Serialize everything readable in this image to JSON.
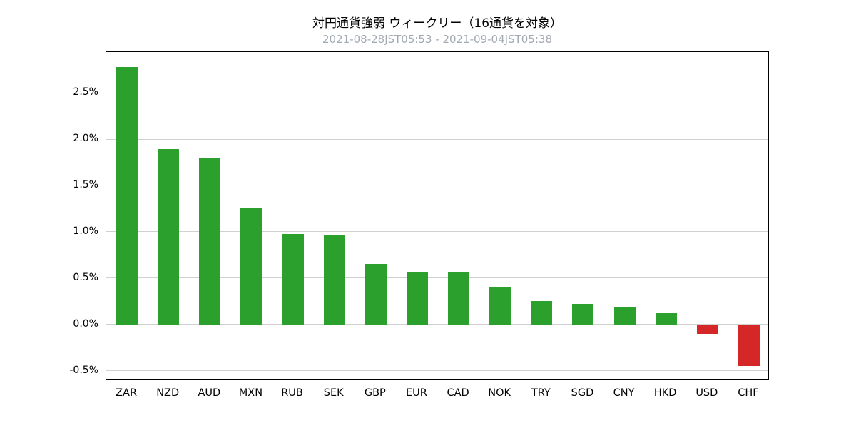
{
  "header": {
    "title": "対円通貨強弱 ウィークリー（16通貨を対象）",
    "subtitle": "2021-08-28JST05:53 - 2021-09-04JST05:38"
  },
  "colors": {
    "positive_bar": "#2ca02c",
    "negative_bar": "#d62728",
    "grid": "#d0d0d0",
    "axis": "#000000",
    "subtitle_text": "#a3a9b1",
    "background": "#ffffff"
  },
  "chart_data": {
    "type": "bar",
    "title": "対円通貨強弱 ウィークリー（16通貨を対象）",
    "subtitle": "2021-08-28JST05:53 - 2021-09-04JST05:38",
    "categories": [
      "ZAR",
      "NZD",
      "AUD",
      "MXN",
      "RUB",
      "SEK",
      "GBP",
      "EUR",
      "CAD",
      "NOK",
      "TRY",
      "SGD",
      "CNY",
      "HKD",
      "USD",
      "CHF"
    ],
    "values": [
      2.78,
      1.89,
      1.79,
      1.25,
      0.98,
      0.96,
      0.65,
      0.57,
      0.56,
      0.4,
      0.25,
      0.22,
      0.18,
      0.12,
      -0.1,
      -0.45
    ],
    "unit": "%",
    "xlabel": "",
    "ylabel": "",
    "ylim": [
      -0.61,
      2.94
    ],
    "yticks": [
      2.5,
      2.0,
      1.5,
      1.0,
      0.5,
      0.0,
      -0.5
    ],
    "ytick_labels": [
      "2.5%",
      "2.0%",
      "1.5%",
      "1.0%",
      "0.5%",
      "0.0%",
      "-0.5%"
    ],
    "grid": true,
    "legend": "none"
  }
}
